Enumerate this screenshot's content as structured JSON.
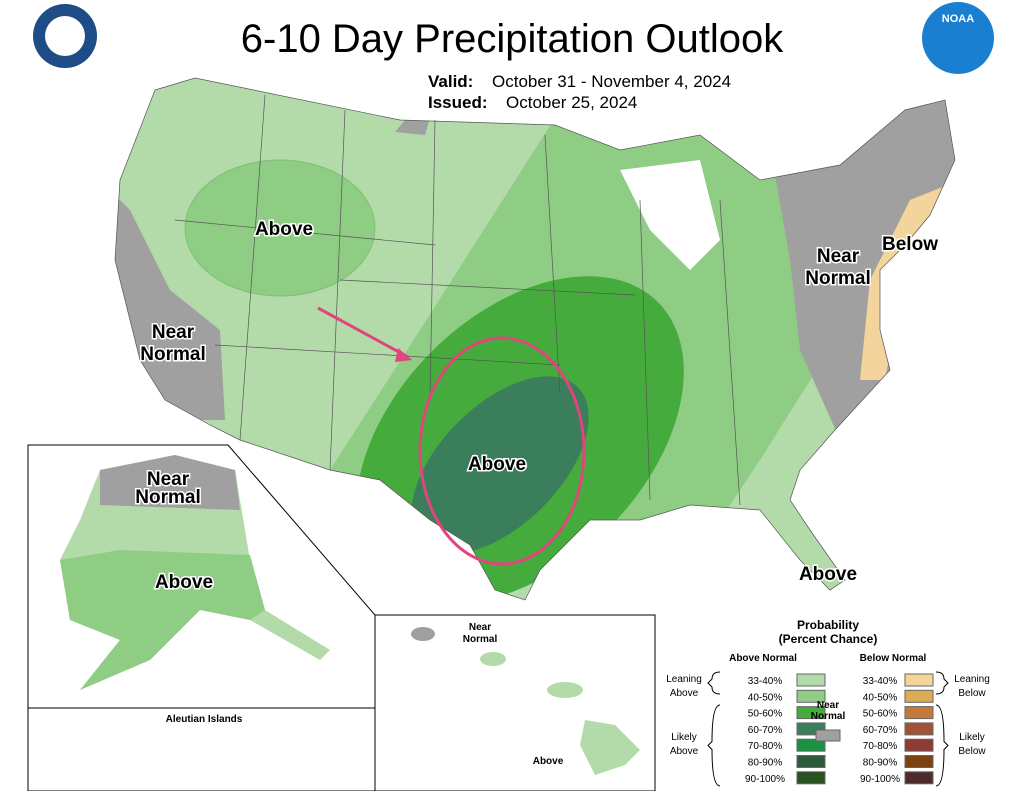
{
  "header": {
    "title": "6-10 Day Precipitation Outlook",
    "valid_label": "Valid:",
    "valid": "October 31 - November 4, 2024",
    "issued_label": "Issued:",
    "issued": "October 25, 2024",
    "logo_text": "NOAA"
  },
  "map_labels": {
    "west_above": [
      "Above"
    ],
    "west_near": [
      "Near",
      "Normal"
    ],
    "northeast_near": [
      "Near",
      "Normal"
    ],
    "northeast_below": [
      "Below"
    ],
    "south_above": [
      "Above"
    ],
    "florida_above": [
      "Above"
    ],
    "alaska_near": [
      "Near",
      "Normal"
    ],
    "alaska_above": [
      "Above"
    ],
    "aleutian": [
      "Aleutian Islands"
    ],
    "hawaii_near": [
      "Near",
      "Normal"
    ],
    "hawaii_above": [
      "Above"
    ]
  },
  "legend": {
    "title": "Probability",
    "subtitle": "(Percent Chance)",
    "above_header": "Above Normal",
    "below_header": "Below Normal",
    "near": [
      "Near",
      "Normal"
    ],
    "near_color": "#a0a0a0",
    "leaning_above": [
      "Leaning",
      "Above"
    ],
    "likely_above": [
      "Likely",
      "Above"
    ],
    "leaning_below": [
      "Leaning",
      "Below"
    ],
    "likely_below": [
      "Likely",
      "Below"
    ],
    "above": [
      {
        "label": "33-40%",
        "color": "#b3dba9"
      },
      {
        "label": "40-50%",
        "color": "#8fcd84"
      },
      {
        "label": "50-60%",
        "color": "#45ab3d"
      },
      {
        "label": "60-70%",
        "color": "#3b7e5c"
      },
      {
        "label": "70-80%",
        "color": "#1a9241"
      },
      {
        "label": "80-90%",
        "color": "#2f5a3c"
      },
      {
        "label": "90-100%",
        "color": "#285220"
      }
    ],
    "below": [
      {
        "label": "33-40%",
        "color": "#f5d69a"
      },
      {
        "label": "40-50%",
        "color": "#ddaa55"
      },
      {
        "label": "50-60%",
        "color": "#c4783a"
      },
      {
        "label": "60-70%",
        "color": "#a05436"
      },
      {
        "label": "70-80%",
        "color": "#8c3c33"
      },
      {
        "label": "80-90%",
        "color": "#7a4312"
      },
      {
        "label": "90-100%",
        "color": "#4f2a2a"
      }
    ]
  }
}
